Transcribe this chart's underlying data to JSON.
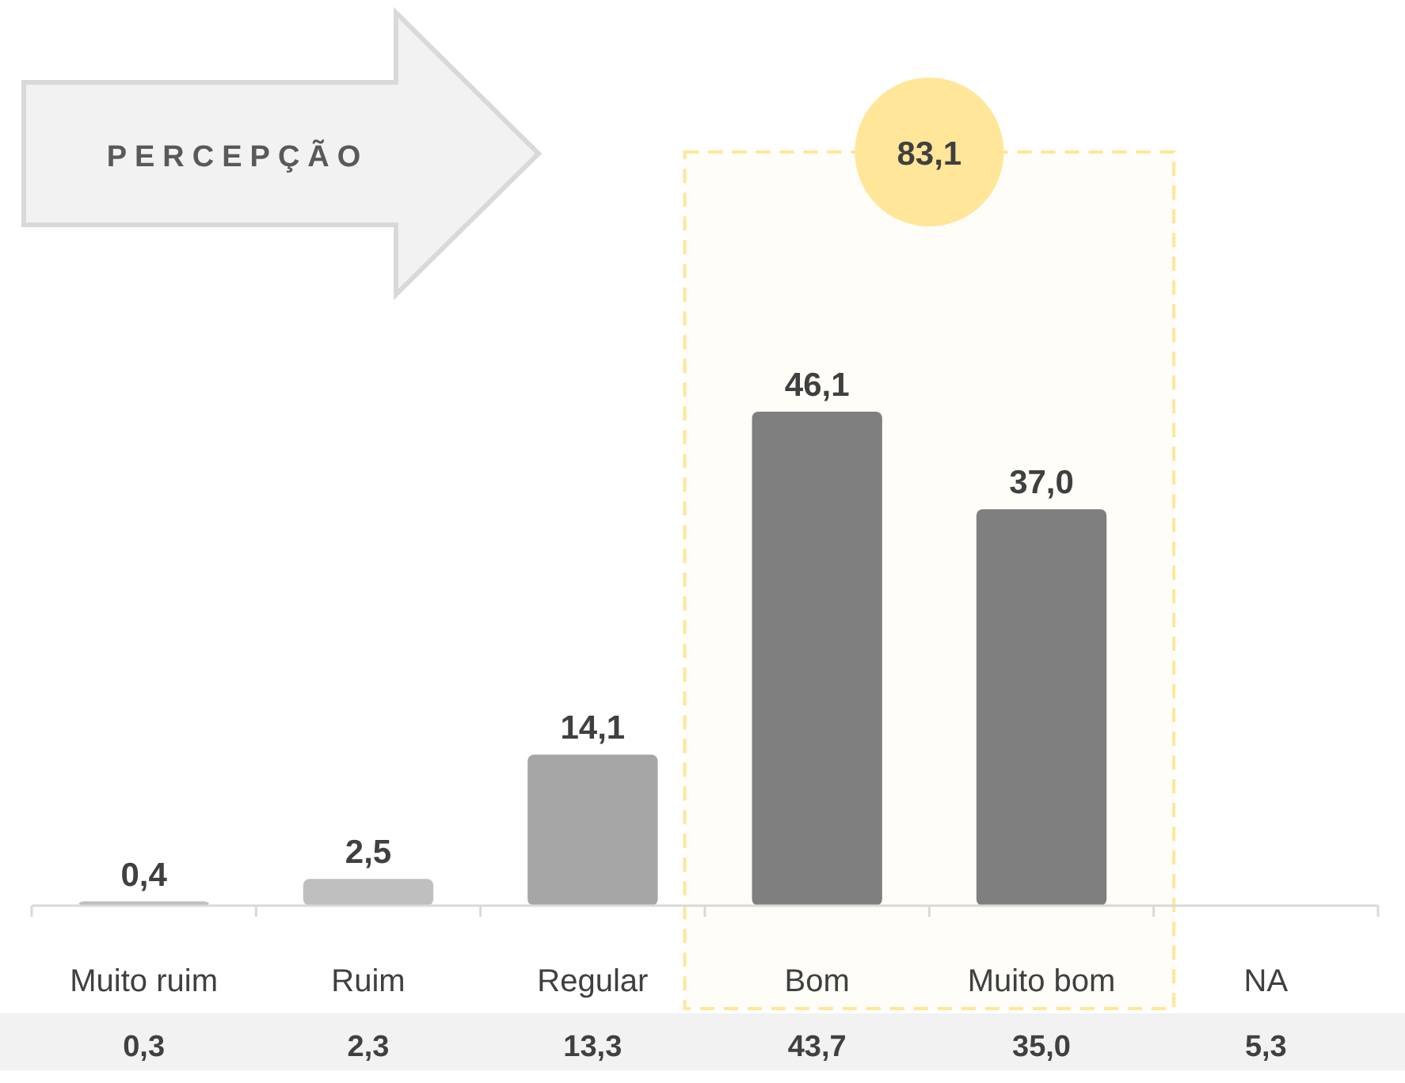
{
  "chart_data": {
    "type": "bar",
    "categories": [
      "Muito ruim",
      "Ruim",
      "Regular",
      "Bom",
      "Muito bom",
      "NA"
    ],
    "values": [
      0.4,
      2.5,
      14.1,
      46.1,
      37.0,
      null
    ],
    "colors": [
      "#bfbfbf",
      "#bfbfbf",
      "#a6a6a6",
      "#7f7f7f",
      "#7f7f7f",
      null
    ],
    "value_labels": [
      "0,4",
      "2,5",
      "14,1",
      "46,1",
      "37,0",
      null
    ],
    "bands": [
      {
        "axis": "x",
        "from": "Bom",
        "to": "Muito bom",
        "label": "83,1",
        "color": "#ffe699"
      }
    ],
    "annotations": [
      "PERCEPÇÃO",
      "0,3",
      "2,3",
      "13,3",
      "43,7",
      "35,0",
      "5,3"
    ]
  }
}
